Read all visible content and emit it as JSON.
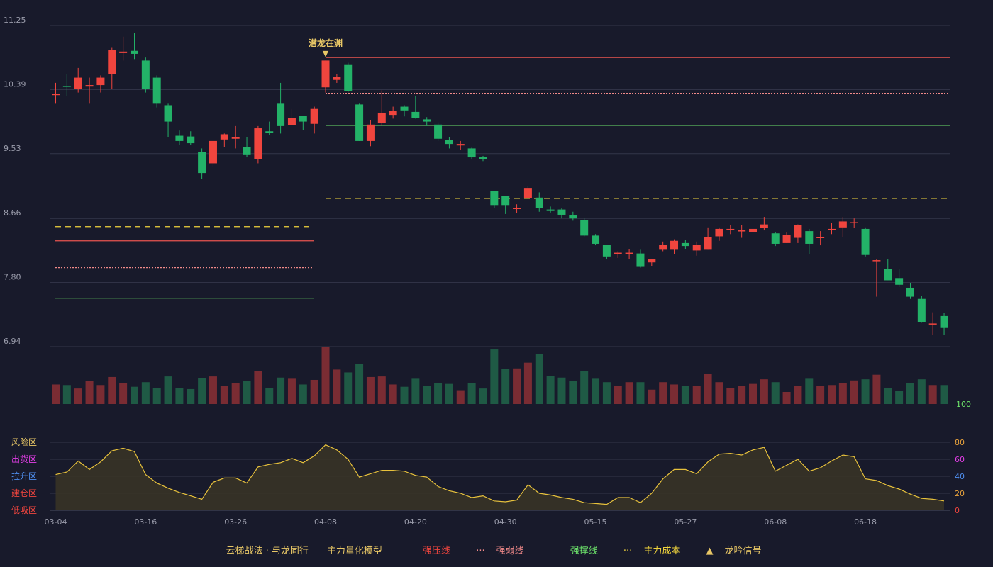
{
  "chart_data": {
    "type": "candlestick",
    "price_axis": {
      "ticks": [
        "11.25",
        "10.39",
        "9.53",
        "8.66",
        "7.80",
        "6.94"
      ],
      "range": [
        6.94,
        11.25
      ]
    },
    "date_ticks": [
      "03-04",
      "03-16",
      "03-26",
      "04-08",
      "04-20",
      "04-30",
      "05-15",
      "05-27",
      "06-08",
      "06-18"
    ],
    "candles": [
      [
        10.33,
        10.33,
        10.48,
        10.2
      ],
      [
        10.44,
        10.43,
        10.6,
        10.3
      ],
      [
        10.4,
        10.55,
        10.68,
        10.35
      ],
      [
        10.43,
        10.45,
        10.55,
        10.2
      ],
      [
        10.45,
        10.55,
        10.58,
        10.35
      ],
      [
        10.6,
        10.92,
        10.95,
        10.4
      ],
      [
        10.88,
        10.9,
        11.1,
        10.78
      ],
      [
        10.91,
        10.87,
        11.15,
        10.8
      ],
      [
        10.78,
        10.4,
        10.82,
        10.35
      ],
      [
        10.55,
        10.2,
        10.58,
        10.15
      ],
      [
        10.18,
        9.96,
        10.2,
        9.75
      ],
      [
        9.77,
        9.7,
        9.84,
        9.65
      ],
      [
        9.76,
        9.67,
        9.83,
        9.65
      ],
      [
        9.55,
        9.27,
        9.6,
        9.19
      ],
      [
        9.4,
        9.7,
        9.7,
        9.35
      ],
      [
        9.72,
        9.79,
        9.8,
        9.62
      ],
      [
        9.73,
        9.75,
        9.9,
        9.6
      ],
      [
        9.62,
        9.52,
        9.75,
        9.48
      ],
      [
        9.46,
        9.87,
        9.9,
        9.4
      ],
      [
        9.83,
        9.81,
        9.96,
        9.78
      ],
      [
        10.2,
        9.9,
        10.48,
        9.8
      ],
      [
        9.91,
        10.01,
        10.13,
        9.91
      ],
      [
        10.04,
        9.96,
        10.04,
        9.85
      ],
      [
        9.93,
        10.13,
        10.16,
        9.8
      ],
      [
        10.42,
        10.78,
        10.78,
        10.35
      ],
      [
        10.52,
        10.56,
        10.6,
        10.48
      ],
      [
        10.72,
        10.37,
        10.75,
        10.35
      ],
      [
        10.19,
        9.7,
        10.2,
        9.7
      ],
      [
        9.7,
        9.92,
        9.98,
        9.63
      ],
      [
        9.94,
        10.08,
        10.38,
        9.9
      ],
      [
        10.05,
        10.1,
        10.16,
        10.0
      ],
      [
        10.16,
        10.11,
        10.18,
        10.03
      ],
      [
        10.09,
        10.01,
        10.3,
        10.0
      ],
      [
        9.99,
        9.96,
        10.02,
        9.9
      ],
      [
        9.92,
        9.73,
        9.95,
        9.7
      ],
      [
        9.71,
        9.66,
        9.75,
        9.6
      ],
      [
        9.64,
        9.66,
        9.7,
        9.58
      ],
      [
        9.6,
        9.48,
        9.61,
        9.46
      ],
      [
        9.48,
        9.46,
        9.5,
        9.43
      ],
      [
        9.03,
        8.84,
        9.03,
        8.8
      ],
      [
        8.96,
        8.84,
        8.96,
        8.72
      ],
      [
        8.8,
        8.8,
        8.85,
        8.73
      ],
      [
        8.93,
        9.07,
        9.1,
        8.93
      ],
      [
        8.94,
        8.8,
        9.01,
        8.75
      ],
      [
        8.78,
        8.76,
        8.82,
        8.74
      ],
      [
        8.78,
        8.71,
        8.8,
        8.66
      ],
      [
        8.7,
        8.66,
        8.75,
        8.63
      ],
      [
        8.64,
        8.43,
        8.66,
        8.42
      ],
      [
        8.43,
        8.32,
        8.45,
        8.3
      ],
      [
        8.31,
        8.15,
        8.31,
        8.11
      ],
      [
        8.2,
        8.2,
        8.22,
        8.13
      ],
      [
        8.2,
        8.2,
        8.25,
        8.11
      ],
      [
        8.19,
        8.01,
        8.24,
        8.0
      ],
      [
        8.07,
        8.11,
        8.12,
        8.02
      ],
      [
        8.24,
        8.31,
        8.35,
        8.22
      ],
      [
        8.24,
        8.36,
        8.38,
        8.18
      ],
      [
        8.33,
        8.29,
        8.37,
        8.25
      ],
      [
        8.23,
        8.31,
        8.35,
        8.16
      ],
      [
        8.24,
        8.41,
        8.54,
        8.24
      ],
      [
        8.42,
        8.52,
        8.54,
        8.36
      ],
      [
        8.52,
        8.52,
        8.57,
        8.45
      ],
      [
        8.5,
        8.5,
        8.57,
        8.4
      ],
      [
        8.48,
        8.52,
        8.58,
        8.45
      ],
      [
        8.53,
        8.58,
        8.68,
        8.5
      ],
      [
        8.46,
        8.32,
        8.48,
        8.29
      ],
      [
        8.33,
        8.44,
        8.47,
        8.33
      ],
      [
        8.4,
        8.57,
        8.58,
        8.33
      ],
      [
        8.49,
        8.32,
        8.52,
        8.18
      ],
      [
        8.41,
        8.41,
        8.49,
        8.3
      ],
      [
        8.52,
        8.52,
        8.6,
        8.45
      ],
      [
        8.54,
        8.62,
        8.68,
        8.41
      ],
      [
        8.6,
        8.61,
        8.66,
        8.53
      ],
      [
        8.52,
        8.17,
        8.54,
        8.15
      ],
      [
        8.1,
        8.1,
        8.12,
        7.61
      ],
      [
        7.98,
        7.83,
        8.11,
        7.83
      ],
      [
        7.86,
        7.77,
        7.98,
        7.74
      ],
      [
        7.73,
        7.61,
        7.79,
        7.58
      ],
      [
        7.58,
        7.27,
        7.62,
        7.26
      ],
      [
        7.25,
        7.25,
        7.4,
        7.1
      ],
      [
        7.35,
        7.19,
        7.39,
        7.1
      ]
    ],
    "volumes": [
      0.34,
      0.33,
      0.27,
      0.4,
      0.33,
      0.47,
      0.36,
      0.3,
      0.38,
      0.28,
      0.48,
      0.28,
      0.26,
      0.45,
      0.48,
      0.32,
      0.37,
      0.4,
      0.57,
      0.28,
      0.46,
      0.44,
      0.34,
      0.42,
      1.0,
      0.6,
      0.55,
      0.7,
      0.47,
      0.48,
      0.34,
      0.3,
      0.44,
      0.32,
      0.37,
      0.35,
      0.24,
      0.37,
      0.27,
      0.95,
      0.61,
      0.62,
      0.72,
      0.87,
      0.49,
      0.46,
      0.4,
      0.57,
      0.44,
      0.38,
      0.32,
      0.38,
      0.38,
      0.25,
      0.38,
      0.34,
      0.32,
      0.32,
      0.52,
      0.38,
      0.28,
      0.32,
      0.35,
      0.43,
      0.38,
      0.21,
      0.32,
      0.44,
      0.31,
      0.33,
      0.37,
      0.41,
      0.43,
      0.51,
      0.28,
      0.23,
      0.37,
      0.43,
      0.33,
      0.33
    ],
    "volume_axis": {
      "max_label": "100"
    },
    "indicator": {
      "values": [
        42,
        45,
        58,
        48,
        57,
        70,
        73,
        69,
        42,
        32,
        26,
        21,
        17,
        13,
        33,
        38,
        38,
        32,
        51,
        54,
        56,
        61,
        56,
        64,
        77,
        71,
        60,
        39,
        43,
        47,
        47,
        46,
        41,
        39,
        28,
        23,
        20,
        15,
        17,
        11,
        10,
        12,
        30,
        20,
        18,
        15,
        13,
        9,
        8,
        7,
        15,
        15,
        9,
        20,
        37,
        48,
        48,
        43,
        57,
        66,
        67,
        65,
        71,
        74,
        46,
        53,
        60,
        46,
        50,
        58,
        65,
        63,
        37,
        35,
        29,
        25,
        19,
        14,
        13,
        11
      ],
      "range": [
        0,
        100
      ],
      "right_ticks": [
        "100",
        "80",
        "60",
        "40",
        "20",
        "0"
      ],
      "zones": [
        "风险区",
        "出货区",
        "拉升区",
        "建仓区",
        "低吸区"
      ]
    },
    "annotation": {
      "text": "潜龙在渊",
      "symbol": "▼"
    },
    "colors": {
      "up": "#f0453e",
      "down": "#23b268",
      "up_vol": "#7a2c33",
      "down_vol": "#1f5a45",
      "pressure": "#e85450",
      "weak": "#f28a8a",
      "support": "#6de46b",
      "cost": "#f0d43c",
      "zone_risk": "#e8c766",
      "zone_out": "#e43ee8",
      "zone_pull": "#4f8ff0",
      "zone_build": "#f0453e",
      "zone_low": "#f0453e",
      "indicator_line": "#e8c23c"
    },
    "levels": {
      "left": {
        "pressure": 8.36,
        "weak": 8.0,
        "support": 7.59,
        "cost": 8.55
      },
      "right": {
        "pressure": 10.82,
        "weak": 10.34,
        "support": 9.91,
        "cost": 8.93
      }
    }
  },
  "legend": {
    "title": "云梯战法 · 与龙同行——主力量化模型",
    "items": [
      {
        "mark": "—",
        "label": "强压线",
        "color": "#f0453e"
      },
      {
        "mark": "···",
        "label": "强弱线",
        "color": "#f28a8a"
      },
      {
        "mark": "—",
        "label": "强撑线",
        "color": "#6de46b"
      },
      {
        "mark": "···",
        "label": "主力成本",
        "color": "#f0d43c"
      },
      {
        "mark": "▲",
        "label": "龙吟信号",
        "color": "#e8c766"
      }
    ]
  }
}
